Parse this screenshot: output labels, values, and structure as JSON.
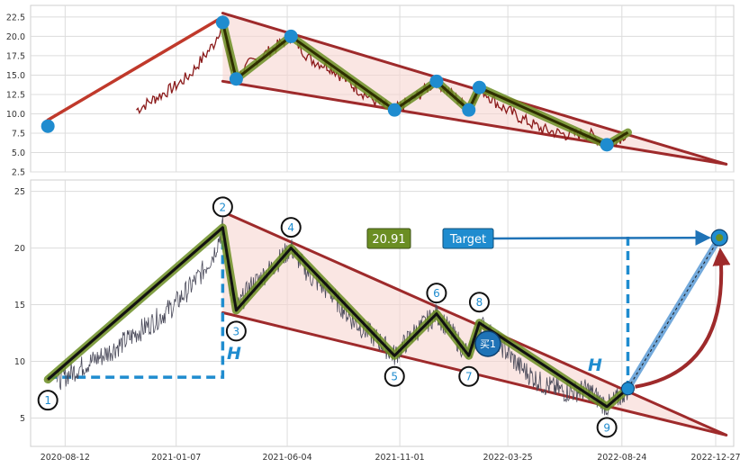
{
  "chart_data": [
    {
      "type": "line",
      "title": "",
      "xlabel": "",
      "ylabel": "",
      "ylim": [
        2.5,
        24.0
      ],
      "xlim": [
        "2020-06-27",
        "2023-01-20"
      ],
      "y_ticks": [
        "2.5",
        "5.0",
        "7.5",
        "10.0",
        "12.5",
        "15.0",
        "17.5",
        "20.0",
        "22.5"
      ],
      "grid": true,
      "series": [
        {
          "role": "price",
          "color": "#8b1a1a",
          "points": [
            [
              "2020-11-15",
              10.5
            ],
            [
              "2020-12-10",
              12.0
            ],
            [
              "2021-01-05",
              13.5
            ],
            [
              "2021-01-25",
              15.0
            ],
            [
              "2021-02-10",
              17.0
            ],
            [
              "2021-02-26",
              19.0
            ],
            [
              "2021-03-10",
              21.8
            ],
            [
              "2021-03-20",
              16.0
            ],
            [
              "2021-03-28",
              14.5
            ],
            [
              "2021-04-15",
              16.5
            ],
            [
              "2021-05-10",
              18.0
            ],
            [
              "2021-05-25",
              19.0
            ],
            [
              "2021-06-09",
              20.0
            ],
            [
              "2021-07-05",
              17.0
            ],
            [
              "2021-08-01",
              16.0
            ],
            [
              "2021-09-01",
              13.5
            ],
            [
              "2021-10-01",
              11.5
            ],
            [
              "2021-10-25",
              10.5
            ],
            [
              "2021-11-20",
              12.0
            ],
            [
              "2021-12-20",
              14.2
            ],
            [
              "2022-01-15",
              12.0
            ],
            [
              "2022-02-01",
              10.5
            ],
            [
              "2022-02-15",
              13.4
            ],
            [
              "2022-03-15",
              11.0
            ],
            [
              "2022-04-10",
              9.5
            ],
            [
              "2022-05-10",
              8.0
            ],
            [
              "2022-06-10",
              7.3
            ],
            [
              "2022-07-10",
              7.5
            ],
            [
              "2022-08-04",
              6.0
            ],
            [
              "2022-08-20",
              6.8
            ],
            [
              "2022-09-01",
              7.6
            ]
          ]
        },
        {
          "role": "pattern-legs",
          "color": "#2e2e00",
          "points": [
            [
              "2021-03-10",
              21.8
            ],
            [
              "2021-03-28",
              14.5
            ],
            [
              "2021-06-09",
              20.0
            ],
            [
              "2021-10-25",
              10.5
            ],
            [
              "2021-12-20",
              14.2
            ],
            [
              "2022-02-01",
              10.5
            ],
            [
              "2022-02-15",
              13.4
            ],
            [
              "2022-08-04",
              6.0
            ],
            [
              "2022-09-01",
              7.6
            ]
          ]
        }
      ],
      "pivots": [
        {
          "x": "2020-07-20",
          "y": 8.4
        },
        {
          "x": "2021-03-10",
          "y": 21.8
        },
        {
          "x": "2021-03-28",
          "y": 14.5
        },
        {
          "x": "2021-06-09",
          "y": 20.0
        },
        {
          "x": "2021-10-25",
          "y": 10.5
        },
        {
          "x": "2021-12-20",
          "y": 14.2
        },
        {
          "x": "2022-02-01",
          "y": 10.5
        },
        {
          "x": "2022-02-15",
          "y": 13.4
        },
        {
          "x": "2022-08-04",
          "y": 6.0
        }
      ],
      "trendlines": [
        {
          "from": {
            "x": "2020-07-20",
            "y": 9.2
          },
          "to": {
            "x": "2021-03-10",
            "y": 22.5
          }
        },
        {
          "from": {
            "x": "2021-03-10",
            "y": 23.0
          },
          "to": {
            "x": "2023-01-10",
            "y": 3.5
          }
        },
        {
          "from": {
            "x": "2021-03-10",
            "y": 14.2
          },
          "to": {
            "x": "2023-01-10",
            "y": 3.5
          }
        }
      ]
    },
    {
      "type": "line",
      "title": "",
      "xlabel": "",
      "ylabel": "",
      "ylim": [
        2.5,
        26.0
      ],
      "xlim": [
        "2020-06-27",
        "2023-01-20"
      ],
      "x_ticks": [
        "2020-08-12",
        "2021-01-07",
        "2021-06-04",
        "2021-11-01",
        "2022-03-25",
        "2022-08-24",
        "2022-12-27"
      ],
      "y_ticks": [
        "5",
        "10",
        "15",
        "20",
        "25"
      ],
      "grid": true,
      "series": [
        {
          "role": "price",
          "color": "#4a4a5a",
          "points": [
            [
              "2020-08-01",
              8.3
            ],
            [
              "2020-08-20",
              9.0
            ],
            [
              "2020-09-10",
              9.8
            ],
            [
              "2020-10-01",
              10.5
            ],
            [
              "2020-10-25",
              11.5
            ],
            [
              "2020-11-15",
              12.5
            ],
            [
              "2020-12-10",
              13.6
            ],
            [
              "2021-01-05",
              15.0
            ],
            [
              "2021-01-25",
              16.5
            ],
            [
              "2021-02-10",
              17.8
            ],
            [
              "2021-02-26",
              19.5
            ],
            [
              "2021-03-10",
              21.8
            ],
            [
              "2021-03-20",
              16.5
            ],
            [
              "2021-03-28",
              14.5
            ],
            [
              "2021-04-15",
              16.5
            ],
            [
              "2021-05-10",
              18.0
            ],
            [
              "2021-05-25",
              19.0
            ],
            [
              "2021-06-09",
              20.0
            ],
            [
              "2021-07-05",
              17.5
            ],
            [
              "2021-08-01",
              16.0
            ],
            [
              "2021-09-01",
              13.5
            ],
            [
              "2021-10-01",
              12.0
            ],
            [
              "2021-10-25",
              10.5
            ],
            [
              "2021-11-20",
              12.5
            ],
            [
              "2021-12-20",
              14.2
            ],
            [
              "2022-01-15",
              12.0
            ],
            [
              "2022-02-01",
              10.5
            ],
            [
              "2022-02-15",
              13.4
            ],
            [
              "2022-03-15",
              11.5
            ],
            [
              "2022-04-10",
              9.5
            ],
            [
              "2022-05-10",
              8.0
            ],
            [
              "2022-06-10",
              7.3
            ],
            [
              "2022-07-10",
              7.5
            ],
            [
              "2022-08-04",
              6.0
            ],
            [
              "2022-08-20",
              6.8
            ],
            [
              "2022-09-01",
              7.6
            ]
          ]
        },
        {
          "role": "pattern-legs",
          "color": "#111111",
          "points": [
            [
              "2020-07-20",
              8.4
            ],
            [
              "2021-03-10",
              21.8
            ],
            [
              "2021-03-28",
              14.5
            ],
            [
              "2021-06-09",
              20.0
            ],
            [
              "2021-10-25",
              10.5
            ],
            [
              "2021-12-20",
              14.2
            ],
            [
              "2022-02-01",
              10.5
            ],
            [
              "2022-02-15",
              13.4
            ],
            [
              "2022-08-04",
              6.0
            ],
            [
              "2022-09-01",
              7.6
            ]
          ]
        }
      ],
      "pivots": [
        {
          "label": "1",
          "x": "2020-07-20",
          "y": 8.4,
          "label_position": "below"
        },
        {
          "label": "2",
          "x": "2021-03-10",
          "y": 21.8,
          "label_position": "above"
        },
        {
          "label": "3",
          "x": "2021-03-28",
          "y": 14.5,
          "label_position": "below"
        },
        {
          "label": "4",
          "x": "2021-06-09",
          "y": 20.0,
          "label_position": "above"
        },
        {
          "label": "5",
          "x": "2021-10-25",
          "y": 10.5,
          "label_position": "below"
        },
        {
          "label": "6",
          "x": "2021-12-20",
          "y": 14.2,
          "label_position": "above"
        },
        {
          "label": "7",
          "x": "2022-02-01",
          "y": 10.5,
          "label_position": "below"
        },
        {
          "label": "8",
          "x": "2022-02-15",
          "y": 13.4,
          "label_position": "above"
        },
        {
          "label": "9",
          "x": "2022-08-04",
          "y": 6.0,
          "label_position": "below"
        }
      ],
      "trendlines": [
        {
          "from": {
            "x": "2020-07-20",
            "y": 8.4
          },
          "to": {
            "x": "2021-03-10",
            "y": 21.8
          }
        },
        {
          "from": {
            "x": "2021-03-10",
            "y": 23.2
          },
          "to": {
            "x": "2023-01-10",
            "y": 3.5
          }
        },
        {
          "from": {
            "x": "2021-03-10",
            "y": 14.3
          },
          "to": {
            "x": "2023-01-10",
            "y": 3.5
          }
        }
      ],
      "height_marker": {
        "label": "H",
        "from": {
          "x": "2020-07-20",
          "y": 8.6
        },
        "to": {
          "x": "2021-03-10",
          "y": 21.8
        }
      },
      "breakout_height_marker": {
        "label": "H",
        "from": {
          "x": "2022-09-01",
          "y": 7.6
        },
        "to": {
          "x": "2022-09-01",
          "y": 21.0
        }
      },
      "price_box": {
        "text": "20.91",
        "background": "#6b8e23"
      },
      "target_box": {
        "text": "Target",
        "background": "#1f8ccf"
      },
      "buy_marker": {
        "text": "买1",
        "x": "2022-03-25",
        "y": 11.6
      },
      "target_point": {
        "x": "2023-01-01",
        "y": 20.91
      },
      "breakout_point": {
        "x": "2022-09-01",
        "y": 7.6
      }
    }
  ]
}
